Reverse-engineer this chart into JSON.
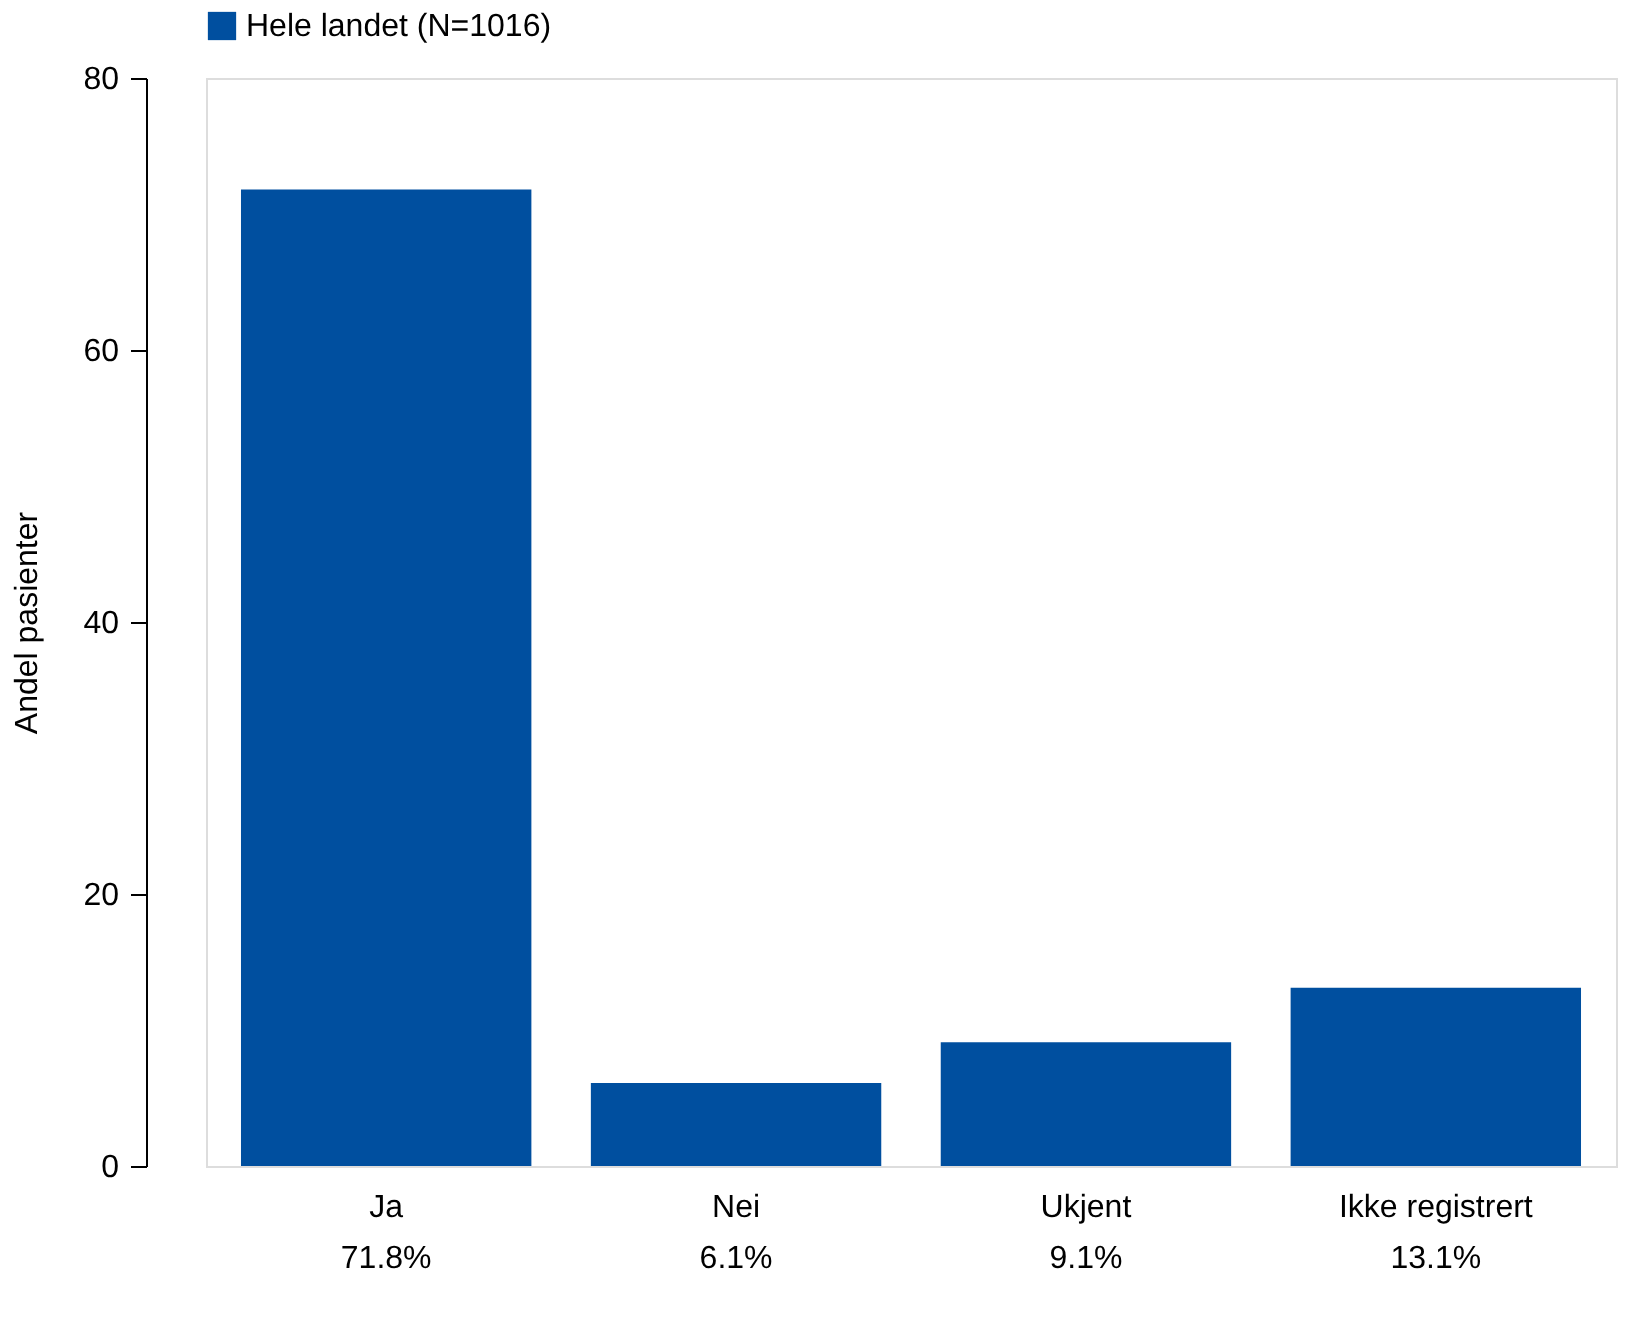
{
  "chart_data": {
    "type": "bar",
    "ylabel": "Andel pasienter",
    "categories": [
      "Ja",
      "Nei",
      "Ukjent",
      "Ikke registrert"
    ],
    "series": [
      {
        "name": "Hele landet (N=1016)",
        "color": "#004f9f",
        "values": [
          71.8,
          6.1,
          9.1,
          13.1
        ],
        "value_labels": [
          "71.8%",
          "6.1%",
          "9.1%",
          "13.1%"
        ]
      }
    ],
    "ylim": [
      0,
      80
    ],
    "yticks": [
      0,
      20,
      40,
      60,
      80
    ],
    "grid": false,
    "legend": "top"
  }
}
